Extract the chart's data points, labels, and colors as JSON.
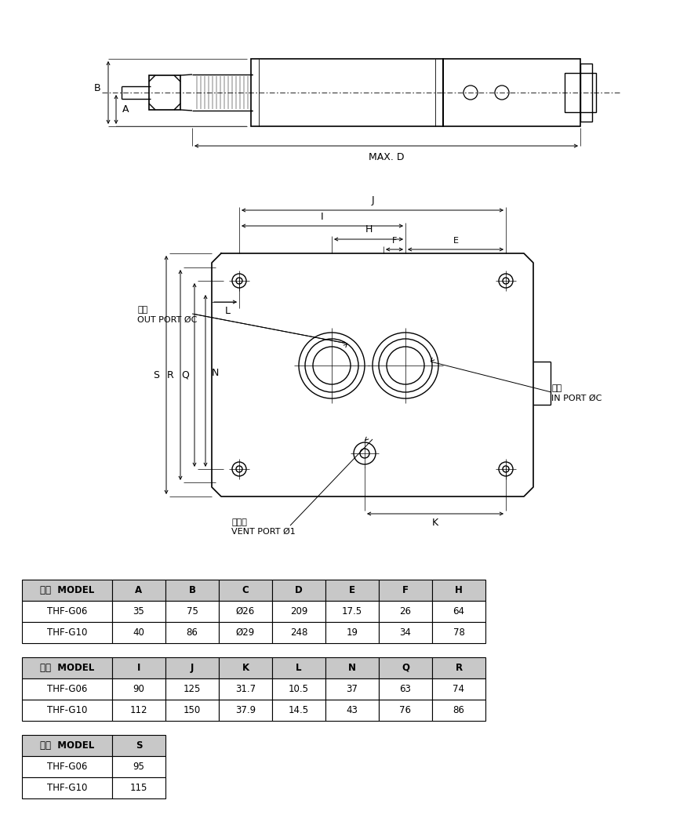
{
  "bg_color": "#ffffff",
  "table1_headers": [
    "型式  MODEL",
    "A",
    "B",
    "C",
    "D",
    "E",
    "F",
    "H"
  ],
  "table1_rows": [
    [
      "THF-G06",
      "35",
      "75",
      "Ø26",
      "209",
      "17.5",
      "26",
      "64"
    ],
    [
      "THF-G10",
      "40",
      "86",
      "Ø29",
      "248",
      "19",
      "34",
      "78"
    ]
  ],
  "table2_headers": [
    "型式  MODEL",
    "I",
    "J",
    "K",
    "L",
    "N",
    "Q",
    "R"
  ],
  "table2_rows": [
    [
      "THF-G06",
      "90",
      "125",
      "31.7",
      "10.5",
      "37",
      "63",
      "74"
    ],
    [
      "THF-G10",
      "112",
      "150",
      "37.9",
      "14.5",
      "43",
      "76",
      "86"
    ]
  ],
  "table3_headers": [
    "型式  MODEL",
    "S"
  ],
  "table3_rows": [
    [
      "THF-G06",
      "95"
    ],
    [
      "THF-G10",
      "115"
    ]
  ],
  "line_color": "#000000",
  "header_bg": "#c8c8c8",
  "table_text_color": "#000000"
}
